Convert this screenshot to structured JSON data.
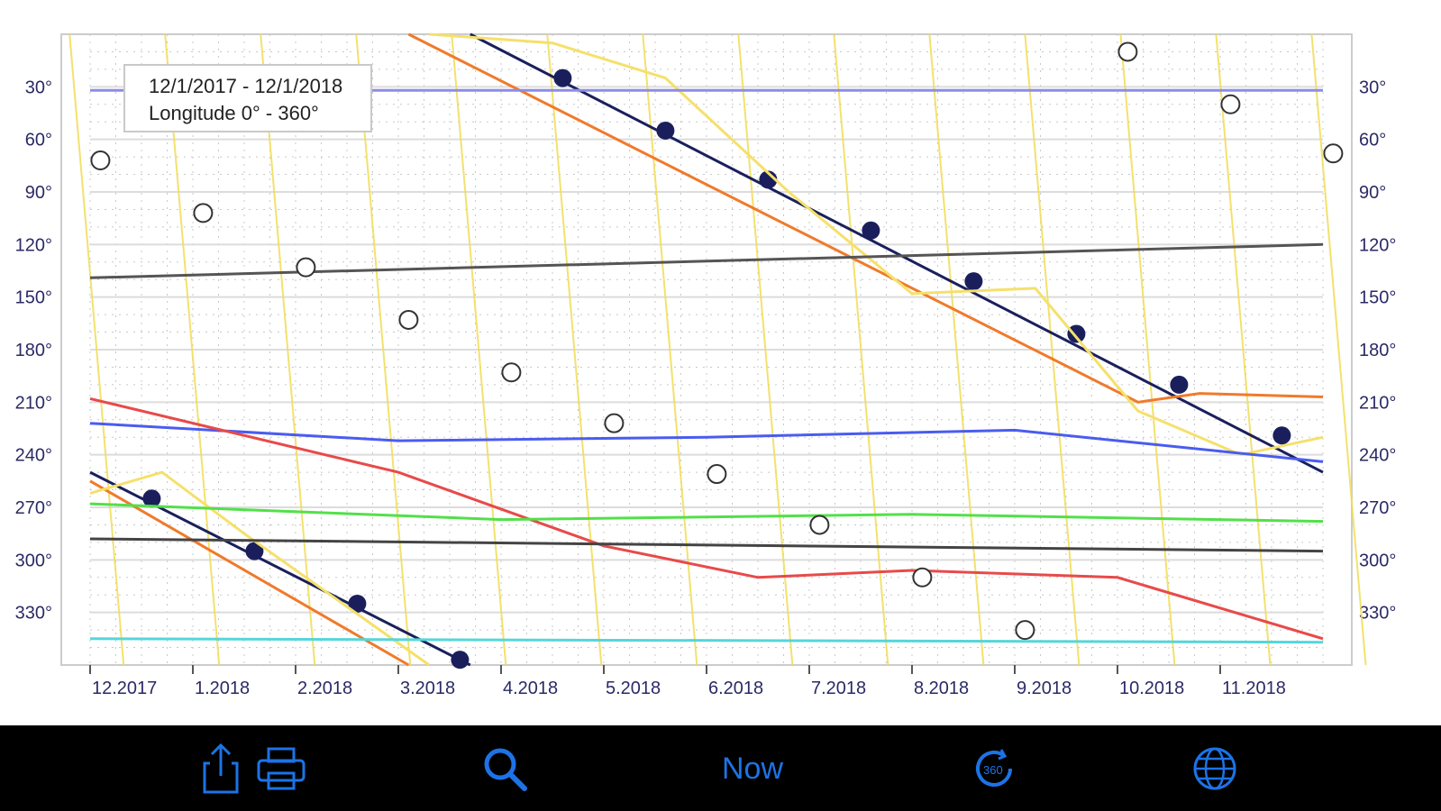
{
  "chart_data": {
    "type": "line",
    "title": "12/1/2017 - 12/1/2018",
    "subtitle": "Longitude 0° - 360°",
    "x_ticks": [
      "12.2017",
      "1.2018",
      "2.2018",
      "3.2018",
      "4.2018",
      "5.2018",
      "6.2018",
      "7.2018",
      "8.2018",
      "9.2018",
      "10.2018",
      "11.2018"
    ],
    "y_ticks": [
      "30°",
      "60°",
      "90°",
      "120°",
      "150°",
      "180°",
      "210°",
      "240°",
      "270°",
      "300°",
      "330°"
    ],
    "y_values": [
      30,
      60,
      90,
      120,
      150,
      180,
      210,
      240,
      270,
      300,
      330
    ],
    "xlim": [
      0,
      12
    ],
    "ylim": [
      0,
      360
    ],
    "y_inverted": true,
    "grid": true,
    "colors": {
      "sun": "#1a1f5c",
      "moon": "#f2dc55",
      "mercury": "#f5e06b",
      "venus": "#f07a2b",
      "mars": "#e84a4a",
      "jupiter": "#4a5cf0",
      "saturn": "#52e04a",
      "uranus": "#55d6d9",
      "neptune": "#8c8ce6",
      "pluto": "#444444",
      "node": "#555555",
      "grid": "#c8c8c8",
      "toolbar_accent": "#1d73e6"
    },
    "series": [
      {
        "key": "sun",
        "x": [
          0,
          3.7,
          3.7,
          12
        ],
        "y": [
          250,
          360,
          0,
          250
        ],
        "markers_filled": [
          [
            0.6,
            265
          ],
          [
            1.6,
            295
          ],
          [
            2.6,
            325
          ],
          [
            3.6,
            357
          ],
          [
            4.6,
            25
          ],
          [
            5.6,
            55
          ],
          [
            6.6,
            83
          ],
          [
            7.6,
            112
          ],
          [
            8.6,
            141
          ],
          [
            9.6,
            171
          ],
          [
            10.6,
            200
          ],
          [
            11.6,
            229
          ]
        ]
      },
      {
        "key": "venus",
        "x": [
          0,
          3.1,
          3.1,
          10.2,
          10.8,
          12
        ],
        "y": [
          255,
          360,
          0,
          210,
          205,
          207
        ],
        "markers_filled": []
      },
      {
        "key": "mercury",
        "x": [
          0,
          0.7,
          1.5,
          3.3,
          3.3,
          4.5,
          5.6,
          6.8,
          8.0,
          9.2,
          10.2,
          11.2,
          12
        ],
        "y": [
          262,
          250,
          285,
          360,
          0,
          5,
          25,
          90,
          148,
          145,
          215,
          240,
          230
        ],
        "markers_filled": []
      },
      {
        "key": "jupiter",
        "x": [
          0,
          3,
          6,
          9,
          12
        ],
        "y": [
          222,
          232,
          230,
          226,
          244
        ],
        "markers_filled": []
      },
      {
        "key": "mars",
        "x": [
          0,
          3,
          5,
          6.5,
          8,
          10,
          12
        ],
        "y": [
          208,
          250,
          292,
          310,
          306,
          310,
          345
        ],
        "markers_filled": []
      },
      {
        "key": "saturn",
        "x": [
          0,
          4,
          8,
          12
        ],
        "y": [
          268,
          277,
          274,
          278
        ],
        "markers_filled": []
      },
      {
        "key": "uranus",
        "x": [
          0,
          12
        ],
        "y": [
          345,
          347
        ],
        "markers_filled": []
      },
      {
        "key": "neptune",
        "x": [
          0,
          12
        ],
        "y": [
          32,
          32
        ],
        "markers_filled": []
      },
      {
        "key": "pluto",
        "x": [
          0,
          12
        ],
        "y": [
          288,
          295
        ],
        "markers_filled": []
      },
      {
        "key": "node",
        "x": [
          0,
          12
        ],
        "y": [
          139,
          120
        ],
        "markers_filled": []
      }
    ],
    "moon_open_markers": [
      [
        0.1,
        72
      ],
      [
        1.1,
        102
      ],
      [
        2.1,
        133
      ],
      [
        3.1,
        163
      ],
      [
        4.1,
        193
      ],
      [
        5.1,
        222
      ],
      [
        6.1,
        251
      ],
      [
        7.1,
        280
      ],
      [
        8.1,
        310
      ],
      [
        9.1,
        340
      ],
      [
        10.1,
        10
      ],
      [
        11.1,
        40
      ],
      [
        12.1,
        68
      ]
    ]
  },
  "labels": {
    "title": "12/1/2017 - 12/1/2018",
    "subtitle": "Longitude  0° - 360°"
  },
  "toolbar": {
    "share_icon": "share-icon",
    "print_icon": "printer-icon",
    "search_icon": "search-icon",
    "now_label": "Now",
    "clock_icon": "clock-icon",
    "globe_icon": "globe-icon"
  }
}
